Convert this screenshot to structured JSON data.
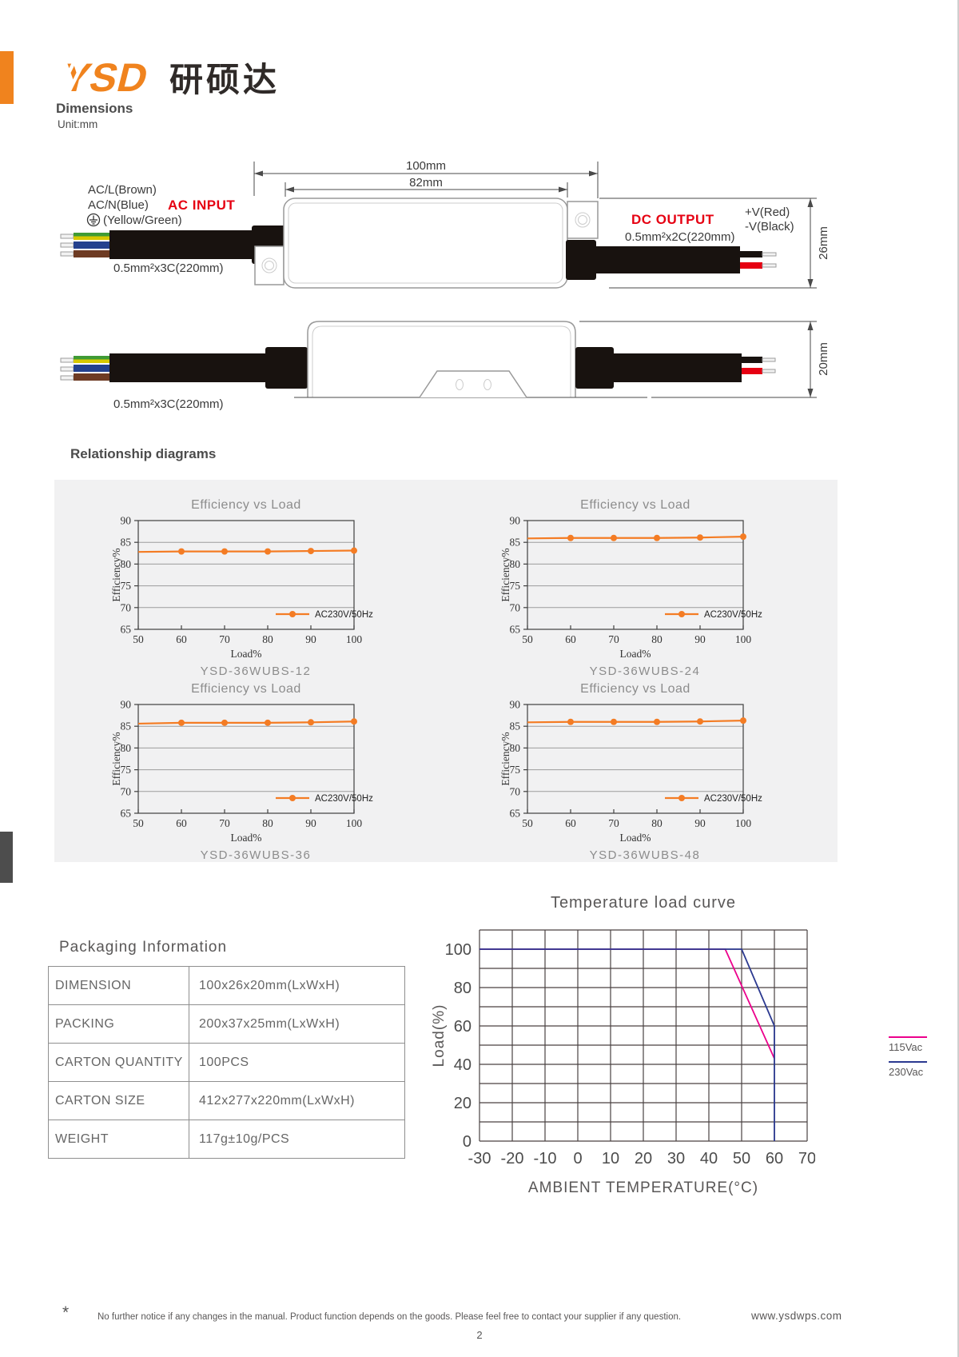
{
  "brand": {
    "logo_text": "YSD",
    "logo_cn": "研硕达",
    "accent_color": "#f0831e"
  },
  "dimensions": {
    "title": "Dimensions",
    "unit": "Unit:mm",
    "top_view": {
      "ac_l": "AC/L(Brown)",
      "ac_n": "AC/N(Blue)",
      "ground": "(Yellow/Green)",
      "ac_input": "AC INPUT",
      "input_cable": "0.5mm²x3C(220mm)",
      "dim_length_total": "100mm",
      "dim_length_body": "82mm",
      "dc_output": "DC OUTPUT",
      "output_cable": "0.5mm²x2C(220mm)",
      "v_plus": "+V(Red)",
      "v_minus": "-V(Black)",
      "dim_width": "26mm"
    },
    "side_view": {
      "cable": "0.5mm²x3C(220mm)",
      "dim_height": "20mm"
    }
  },
  "relationship": {
    "title": "Relationship diagrams"
  },
  "chart_data": [
    {
      "type": "line",
      "title": "Efficiency vs Load",
      "caption": "YSD-36WUBS-12",
      "xlabel": "Load%",
      "ylabel": "Efficiency%",
      "x": [
        50,
        60,
        70,
        80,
        90,
        100
      ],
      "ylim": [
        65,
        90
      ],
      "yticks": [
        65,
        70,
        75,
        80,
        85,
        90
      ],
      "line_color": "#f47c24",
      "grid": "horizontal",
      "legend_position": "bottom-right",
      "series": [
        {
          "name": "AC230V/50Hz",
          "values": [
            82.8,
            82.9,
            82.9,
            82.9,
            83.0,
            83.1
          ]
        }
      ]
    },
    {
      "type": "line",
      "title": "Efficiency vs Load",
      "caption": "YSD-36WUBS-24",
      "xlabel": "Load%",
      "ylabel": "Efficiency%",
      "x": [
        50,
        60,
        70,
        80,
        90,
        100
      ],
      "ylim": [
        65,
        90
      ],
      "yticks": [
        65,
        70,
        75,
        80,
        85,
        90
      ],
      "line_color": "#f47c24",
      "grid": "horizontal",
      "legend_position": "bottom-right",
      "series": [
        {
          "name": "AC230V/50Hz",
          "values": [
            85.9,
            86.0,
            86.0,
            86.0,
            86.1,
            86.3
          ]
        }
      ]
    },
    {
      "type": "line",
      "title": "Efficiency vs Load",
      "caption": "YSD-36WUBS-36",
      "xlabel": "Load%",
      "ylabel": "Efficiency%",
      "x": [
        50,
        60,
        70,
        80,
        90,
        100
      ],
      "ylim": [
        65,
        90
      ],
      "yticks": [
        65,
        70,
        75,
        80,
        85,
        90
      ],
      "line_color": "#f47c24",
      "grid": "horizontal",
      "legend_position": "bottom-right",
      "series": [
        {
          "name": "AC230V/50Hz",
          "values": [
            85.6,
            85.8,
            85.8,
            85.8,
            85.9,
            86.1
          ]
        }
      ]
    },
    {
      "type": "line",
      "title": "Efficiency vs Load",
      "caption": "YSD-36WUBS-48",
      "xlabel": "Load%",
      "ylabel": "Efficiency%",
      "x": [
        50,
        60,
        70,
        80,
        90,
        100
      ],
      "ylim": [
        65,
        90
      ],
      "yticks": [
        65,
        70,
        75,
        80,
        85,
        90
      ],
      "line_color": "#f47c24",
      "grid": "horizontal",
      "legend_position": "bottom-right",
      "series": [
        {
          "name": "AC230V/50Hz",
          "values": [
            85.9,
            86.0,
            86.0,
            86.0,
            86.1,
            86.3
          ]
        }
      ]
    },
    {
      "type": "line",
      "title": "Temperature load curve",
      "xlabel": "AMBIENT TEMPERATURE(°C)",
      "ylabel": "Load(%)",
      "xlim": [
        -30,
        70
      ],
      "ylim": [
        0,
        110
      ],
      "xticks": [
        -30,
        -20,
        -10,
        0,
        10,
        20,
        30,
        40,
        50,
        60,
        70
      ],
      "yticks": [
        0,
        20,
        40,
        60,
        80,
        100
      ],
      "grid": "both",
      "legend_position": "right",
      "series": [
        {
          "name": "115Vac",
          "color": "#ec008c",
          "points": [
            [
              -30,
              100
            ],
            [
              45,
              100
            ],
            [
              60,
              43
            ]
          ]
        },
        {
          "name": "230Vac",
          "color": "#2b3990",
          "points": [
            [
              -30,
              100
            ],
            [
              50,
              100
            ],
            [
              60,
              60
            ],
            [
              60,
              0
            ]
          ]
        }
      ]
    }
  ],
  "packaging": {
    "title": "Packaging Information",
    "rows": [
      {
        "label": "DIMENSION",
        "value": "100x26x20mm(LxWxH)"
      },
      {
        "label": "PACKING",
        "value": "200x37x25mm(LxWxH)"
      },
      {
        "label": "CARTON QUANTITY",
        "value": "100PCS"
      },
      {
        "label": "CARTON SIZE",
        "value": "412x277x220mm(LxWxH)"
      },
      {
        "label": "WEIGHT",
        "value": "117g±10g/PCS"
      }
    ]
  },
  "footer": {
    "asterisk": "*",
    "note": "No further notice if any changes in the manual. Product function depends on the goods. Please feel free to contact your supplier if any question.",
    "site": "www.ysdwps.com",
    "page_number": "2"
  }
}
